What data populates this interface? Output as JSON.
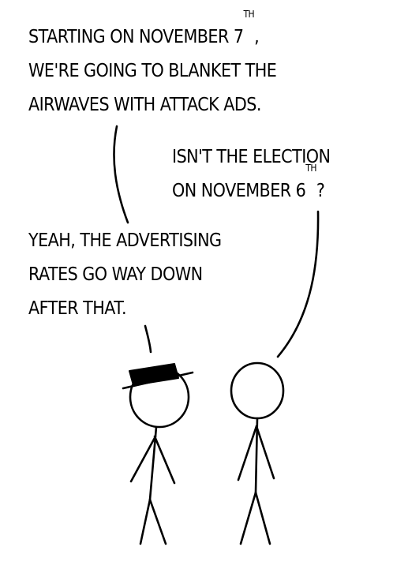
{
  "speech_1": {
    "line_1_text": "Starting on November 7",
    "line_1_sup": "th",
    "line_1_tail": ",",
    "line_2": "We're going to blanket the",
    "line_3": "airwaves with attack ads."
  },
  "speech_2": {
    "line_1": "Isn't the election",
    "line_2_text": "on November 6",
    "line_2_sup": "th",
    "line_2_tail": "?"
  },
  "speech_3": {
    "line_1": "Yeah, the advertising",
    "line_2": "rates go way down",
    "line_3": "after that."
  },
  "colors": {
    "ink": "#000000",
    "paper": "#ffffff"
  }
}
